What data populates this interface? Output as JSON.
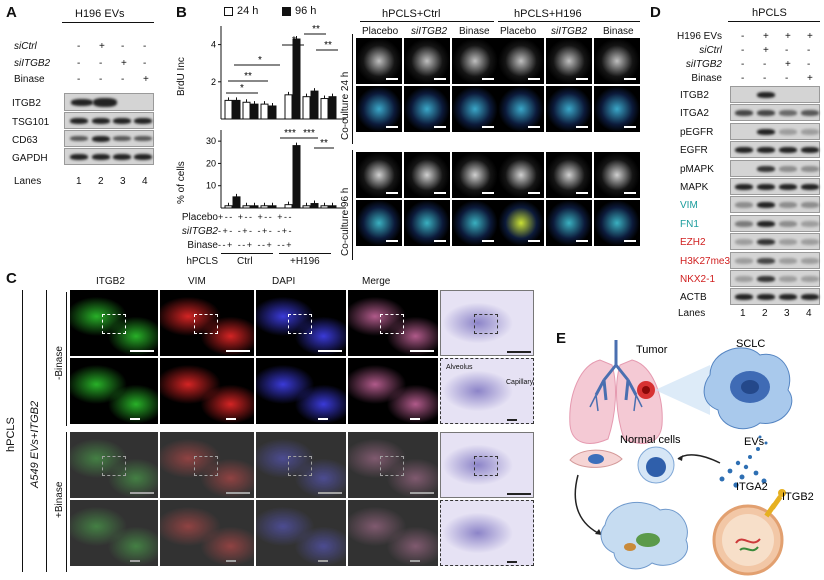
{
  "panel_letters": {
    "a": "A",
    "b": "B",
    "c": "C",
    "d": "D",
    "e": "E"
  },
  "panelA": {
    "header": "H196 EVs",
    "row_labels": [
      "siCtrl",
      "siITGB2",
      "Binase"
    ],
    "signs": [
      [
        "-",
        "+",
        "-",
        "-"
      ],
      [
        "-",
        "-",
        "+",
        "-"
      ],
      [
        "-",
        "-",
        "-",
        "+"
      ]
    ],
    "blot_labels": [
      "ITGB2",
      "TSG101",
      "CD63",
      "GAPDH"
    ],
    "lanes_label": "Lanes",
    "lanes": [
      "1",
      "2",
      "3",
      "4"
    ]
  },
  "panelB": {
    "legend": [
      "24 h",
      "96 h"
    ],
    "top_ylabel": "BrdU Inc",
    "top_ticks": [
      "2",
      "4"
    ],
    "bottom_ylabel": "% of cells",
    "bottom_ticks": [
      "10",
      "20",
      "30"
    ],
    "sig_top": [
      "*",
      "**",
      "*",
      "*",
      "**",
      "**"
    ],
    "sig_bottom": [
      "***",
      "***",
      "**"
    ],
    "conditions": [
      "Placebo",
      "siITGB2",
      "Binase",
      "hPCLS"
    ],
    "placebo_signs": "+-- +-- +-- +--",
    "sii_signs": "-+- -+- -+- -+-",
    "binase_signs": "--+ --+ --+ --+",
    "group_labels": [
      "Ctrl",
      "+H196"
    ],
    "image_headers": [
      "hPCLS+Ctrl",
      "hPCLS+H196"
    ],
    "image_cols": [
      "Placebo",
      "siITGB2",
      "Binase",
      "Placebo",
      "siITGB2",
      "Binase"
    ],
    "side_labels": [
      "Co-culture 24 h",
      "Co-culture 96 h"
    ]
  },
  "chart_data": [
    {
      "type": "bar",
      "title": "",
      "ylabel": "BrdU Inc",
      "categories": [
        "Ctrl Placebo",
        "Ctrl siITGB2",
        "Ctrl Binase",
        "H196 Placebo",
        "H196 siITGB2",
        "H196 Binase"
      ],
      "series": [
        {
          "name": "24 h",
          "values": [
            1.0,
            0.9,
            0.8,
            1.3,
            1.2,
            1.1
          ]
        },
        {
          "name": "96 h",
          "values": [
            1.0,
            0.8,
            0.7,
            4.3,
            1.5,
            1.2
          ]
        }
      ],
      "ylim": [
        0,
        5
      ]
    },
    {
      "type": "bar",
      "title": "",
      "ylabel": "% of cells",
      "categories": [
        "Ctrl Placebo",
        "Ctrl siITGB2",
        "Ctrl Binase",
        "H196 Placebo",
        "H196 siITGB2",
        "H196 Binase"
      ],
      "series": [
        {
          "name": "24 h",
          "values": [
            1.0,
            1.0,
            1.0,
            1.5,
            1.0,
            1.0
          ]
        },
        {
          "name": "96 h",
          "values": [
            5.0,
            1.0,
            1.0,
            28.0,
            2.0,
            1.0
          ]
        }
      ],
      "ylim": [
        0,
        35
      ]
    }
  ],
  "panelC": {
    "cols": [
      "ITGB2",
      "VIM",
      "DAPI",
      "Merge"
    ],
    "left_label1": "hPCLS",
    "left_label2": "A549 EVs+ITGB2",
    "row_labels": [
      "-Binase",
      "+Binase"
    ],
    "annot": [
      "Alveolus",
      "Capillary"
    ]
  },
  "panelD": {
    "header": "hPCLS",
    "rows": [
      "H196 EVs",
      "siCtrl",
      "siITGB2",
      "Binase"
    ],
    "signs": [
      [
        "-",
        "+",
        "+",
        "+"
      ],
      [
        "-",
        "+",
        "-",
        "-"
      ],
      [
        "-",
        "-",
        "+",
        "-"
      ],
      [
        "-",
        "-",
        "-",
        "+"
      ]
    ],
    "blots": [
      {
        "label": "ITGB2",
        "color": "#111111"
      },
      {
        "label": "ITGA2",
        "color": "#111111"
      },
      {
        "label": "pEGFR",
        "color": "#111111"
      },
      {
        "label": "EGFR",
        "color": "#111111"
      },
      {
        "label": "pMAPK",
        "color": "#111111"
      },
      {
        "label": "MAPK",
        "color": "#111111"
      },
      {
        "label": "VIM",
        "color": "#1a9c9c"
      },
      {
        "label": "FN1",
        "color": "#1a9c9c"
      },
      {
        "label": "EZH2",
        "color": "#d02020"
      },
      {
        "label": "H3K27me3",
        "color": "#d02020"
      },
      {
        "label": "NKX2-1",
        "color": "#d02020"
      },
      {
        "label": "ACTB",
        "color": "#111111"
      }
    ],
    "lanes_label": "Lanes",
    "lanes": [
      "1",
      "2",
      "3",
      "4"
    ]
  },
  "panelE": {
    "labels": [
      "Tumor",
      "SCLC",
      "Normal cells",
      "EVs",
      "ITGA2",
      "ITGB2"
    ]
  }
}
